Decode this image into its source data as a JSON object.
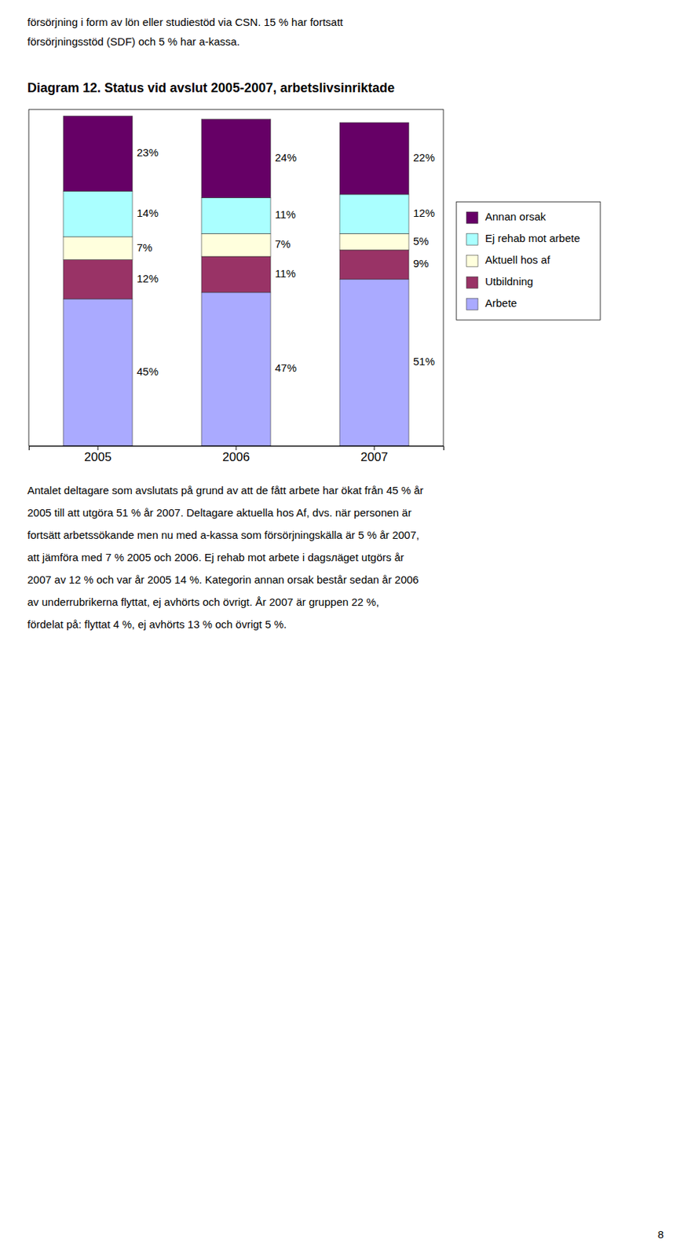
{
  "chart_data": {
    "type": "bar",
    "stacked": true,
    "title": "Diagram 12. Status vid avslut 2005-2007, arbetslivsinriktade",
    "categories": [
      "2005",
      "2006",
      "2007"
    ],
    "series": [
      {
        "name": "Arbete",
        "color": "#aaaaff",
        "values": [
          45,
          47,
          51
        ],
        "value_labels": [
          "45%",
          "47%",
          "51%"
        ]
      },
      {
        "name": "Utbildning",
        "color": "#993366",
        "values": [
          12,
          11,
          9
        ],
        "value_labels": [
          "12%",
          "11%",
          "9%"
        ]
      },
      {
        "name": "Aktuell hos af",
        "color": "#ffffdd",
        "values": [
          7,
          7,
          5
        ],
        "value_labels": [
          "7%",
          "7%",
          "5%"
        ]
      },
      {
        "name": "Ej rehab mot arbete",
        "color": "#aaffff",
        "values": [
          14,
          11,
          12
        ],
        "value_labels": [
          "14%",
          "11%",
          "12%"
        ]
      },
      {
        "name": "Annan orsak",
        "color": "#660066",
        "values": [
          23,
          24,
          22
        ],
        "value_labels": [
          "23%",
          "24%",
          "22%"
        ]
      }
    ],
    "ylim": [
      0,
      103
    ],
    "tick_labels": "x",
    "grid": false,
    "legend": "right",
    "data_labels": true,
    "annotations": [
      "försörjning i form av lön eller studiestöd via CSN. 15 % har fortsatt",
      "försörjningsstöd (SDF) och 5 % har a-kassa.",
      "Antalet deltagare som avslutats på grund av att de fått arbete har ökat från 45 % år",
      "2005 till att utgöra 51 % år 2007. Deltagare aktuella hos Af, dvs. när personen är",
      "fortsätt arbetssökande men nu med a-kassa som försörjningskälla är 5 % år 2007,",
      "att jämföra med 7 % 2005 och 2006. Ej rehab mot arbete i dagsлäget utgörs år",
      "2007 av 12 % och var år 2005 14 %. Kategorin annan orsak består sedan år 2006",
      "av underrubrikerna flyttat, ej avhörts och övrigt. År 2007 är gruppen 22 %,",
      "fördelat på: flyttat 4 %, ej avhörts 13 % och övrigt 5 %.",
      "8"
    ]
  }
}
